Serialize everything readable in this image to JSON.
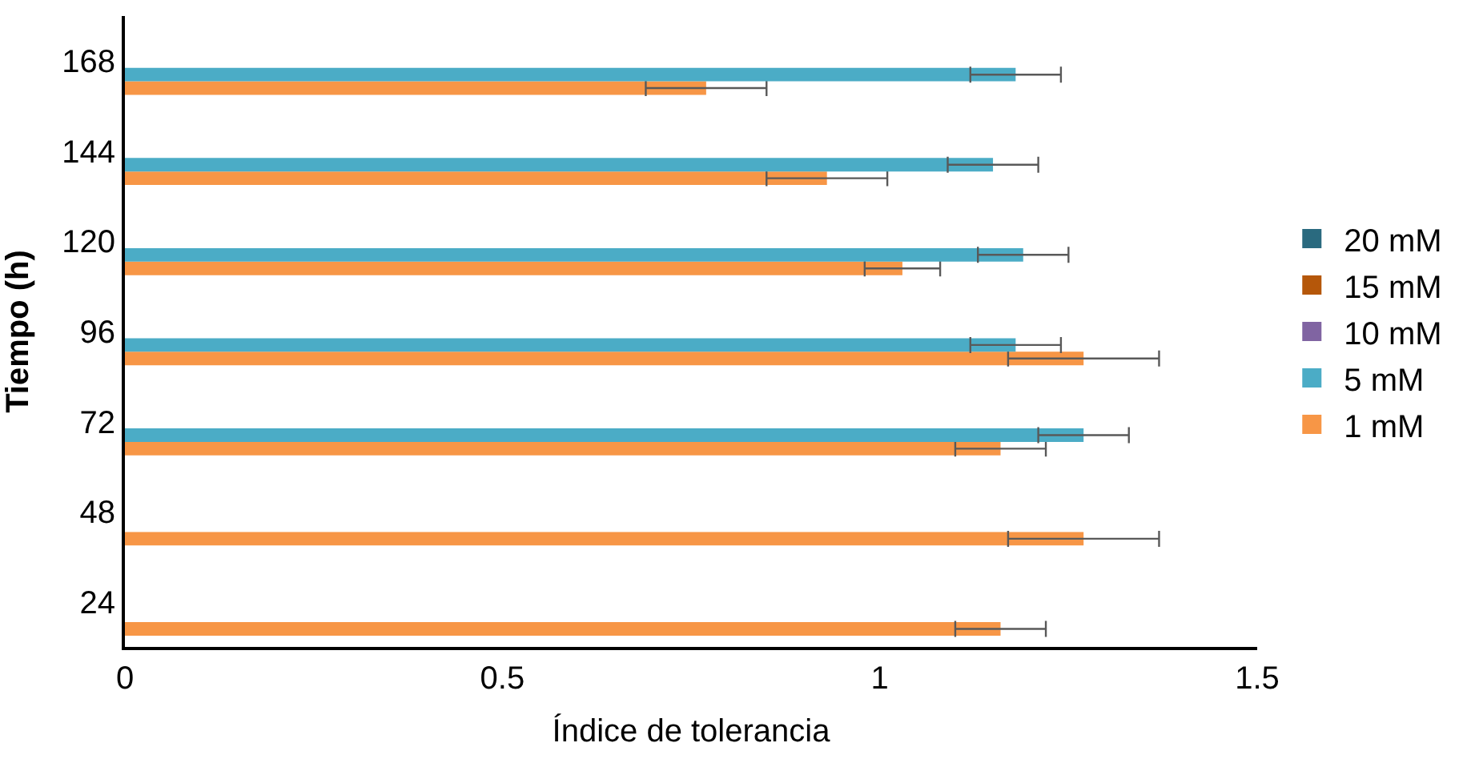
{
  "chart_data": {
    "type": "bar",
    "orientation": "horizontal",
    "xlabel": "Índice de tolerancia",
    "ylabel": "Tiempo (h)",
    "categories": [
      "168",
      "144",
      "120",
      "96",
      "72",
      "48",
      "24"
    ],
    "series": [
      {
        "name": "1 mM",
        "color": "#f79646",
        "values": [
          0.77,
          0.93,
          1.03,
          1.27,
          1.16,
          1.27,
          1.16
        ],
        "errors": [
          0.08,
          0.08,
          0.05,
          0.1,
          0.06,
          0.1,
          0.06
        ]
      },
      {
        "name": "5 mM",
        "color": "#4bacc6",
        "values": [
          1.18,
          1.15,
          1.19,
          1.18,
          1.27,
          null,
          null
        ],
        "errors": [
          0.06,
          0.06,
          0.06,
          0.06,
          0.06,
          null,
          null
        ]
      },
      {
        "name": "10 mM",
        "color": "#8064a2",
        "values": [
          null,
          null,
          null,
          null,
          null,
          null,
          null
        ]
      },
      {
        "name": "15 mM",
        "color": "#b5570a",
        "values": [
          null,
          null,
          null,
          null,
          null,
          null,
          null
        ]
      },
      {
        "name": "20 mM",
        "color": "#2a6a7f",
        "values": [
          null,
          null,
          null,
          null,
          null,
          null,
          null
        ]
      }
    ],
    "xlim": [
      0,
      1.5
    ],
    "xticks": [
      0,
      0.5,
      1,
      1.5
    ],
    "legend": "right"
  }
}
